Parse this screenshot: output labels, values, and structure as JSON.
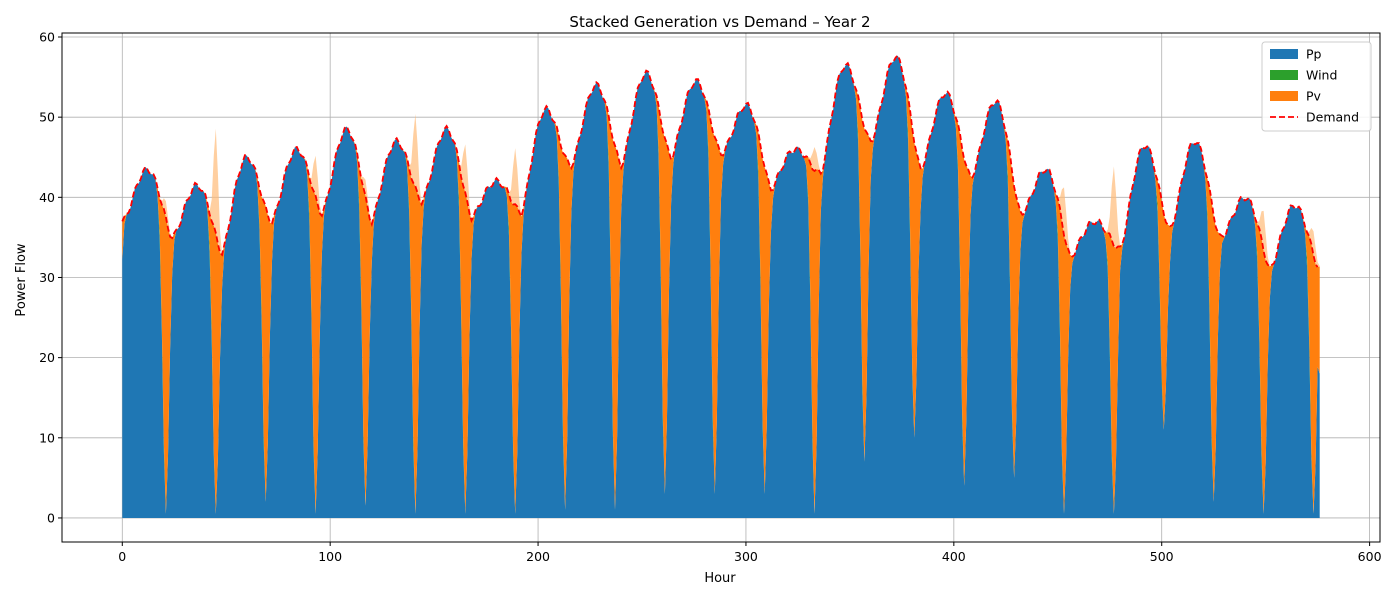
{
  "chart_data": {
    "type": "area",
    "title": "Stacked Generation vs Demand – Year 2",
    "xlabel": "Hour",
    "ylabel": "Power Flow",
    "xlim": [
      -29,
      605
    ],
    "ylim": [
      -3,
      60.5
    ],
    "xticks": [
      0,
      100,
      200,
      300,
      400,
      500,
      600
    ],
    "yticks": [
      0,
      10,
      20,
      30,
      40,
      50,
      60
    ],
    "grid": true,
    "legend_position": "top-right",
    "colors": {
      "Pp": "#1f77b4",
      "Wind": "#2ca02c",
      "Pv": "#ff7f0e",
      "Pv_surplus": "#ffbb78",
      "Demand": "#ff0000"
    },
    "days": [
      {
        "x0": 0,
        "b": 37,
        "p": 43.5,
        "pvd": 0.5,
        "pvx": 2
      },
      {
        "x0": 24,
        "b": 35,
        "p": 41.5,
        "pvd": 0.5,
        "pvx": 13
      },
      {
        "x0": 48,
        "b": 33,
        "p": 45,
        "pvd": 2,
        "pvx": 0
      },
      {
        "x0": 72,
        "b": 37,
        "p": 46,
        "pvd": 0.5,
        "pvx": 5
      },
      {
        "x0": 96,
        "b": 38,
        "p": 48.5,
        "pvd": 1.5,
        "pvx": 2
      },
      {
        "x0": 120,
        "b": 37,
        "p": 47,
        "pvd": 0.5,
        "pvx": 9
      },
      {
        "x0": 144,
        "b": 39.5,
        "p": 48.5,
        "pvd": 0.5,
        "pvx": 6
      },
      {
        "x0": 168,
        "b": 37.5,
        "p": 42,
        "pvd": 0.5,
        "pvx": 7
      },
      {
        "x0": 192,
        "b": 38,
        "p": 51,
        "pvd": 1,
        "pvx": 0
      },
      {
        "x0": 216,
        "b": 44,
        "p": 54,
        "pvd": 1,
        "pvx": 0
      },
      {
        "x0": 240,
        "b": 44,
        "p": 55.5,
        "pvd": 3,
        "pvx": 0
      },
      {
        "x0": 264,
        "b": 45,
        "p": 54.5,
        "pvd": 3,
        "pvx": 0
      },
      {
        "x0": 288,
        "b": 45.5,
        "p": 51.5,
        "pvd": 3,
        "pvx": 0
      },
      {
        "x0": 312,
        "b": 41,
        "p": 46,
        "pvd": 0.5,
        "pvx": 3
      },
      {
        "x0": 336,
        "b": 43,
        "p": 56.5,
        "pvd": 7,
        "pvx": 0
      },
      {
        "x0": 360,
        "b": 47,
        "p": 57.5,
        "pvd": 10,
        "pvx": 0
      },
      {
        "x0": 384,
        "b": 43.5,
        "p": 53,
        "pvd": 4,
        "pvx": 0
      },
      {
        "x0": 408,
        "b": 42.5,
        "p": 52,
        "pvd": 5,
        "pvx": 0
      },
      {
        "x0": 432,
        "b": 38,
        "p": 43.5,
        "pvd": 0.5,
        "pvx": 6
      },
      {
        "x0": 456,
        "b": 32.5,
        "p": 37,
        "pvd": 0.5,
        "pvx": 10
      },
      {
        "x0": 480,
        "b": 33.5,
        "p": 46.5,
        "pvd": 11,
        "pvx": 0
      },
      {
        "x0": 504,
        "b": 36,
        "p": 47,
        "pvd": 2,
        "pvx": 0
      },
      {
        "x0": 528,
        "b": 35,
        "p": 40,
        "pvd": 0.5,
        "pvx": 5
      },
      {
        "x0": 552,
        "b": 31,
        "p": 39,
        "pvd": 0.5,
        "pvx": 3
      }
    ],
    "series": [
      {
        "name": "Pp",
        "kind": "stacked-area"
      },
      {
        "name": "Wind",
        "kind": "stacked-area"
      },
      {
        "name": "Pv",
        "kind": "stacked-area"
      },
      {
        "name": "Demand",
        "kind": "dashed-line"
      }
    ]
  }
}
